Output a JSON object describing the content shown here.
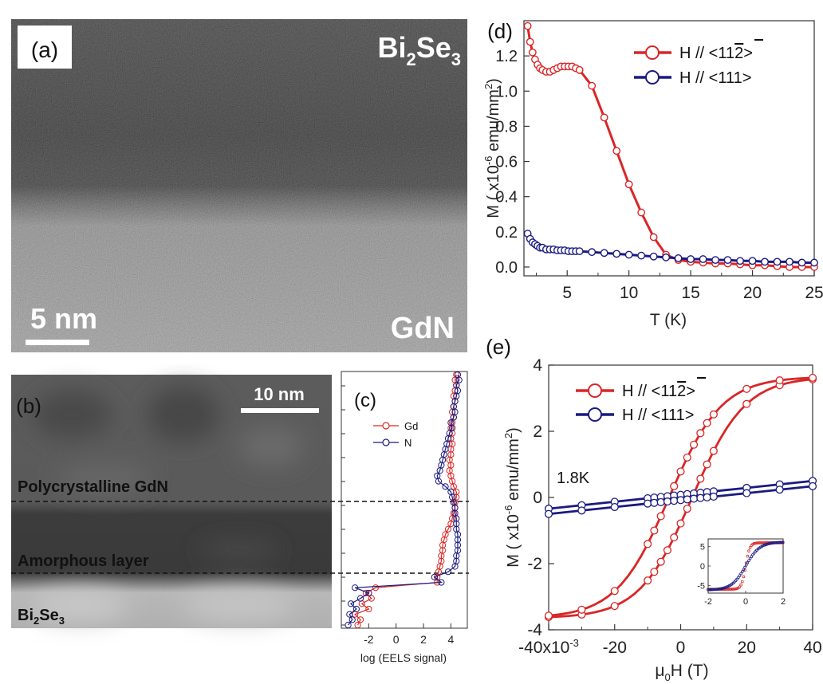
{
  "panels": {
    "a": {
      "label": "(a)",
      "material_top": "Bi",
      "material_top_sub1": "2",
      "material_top_mid": "Se",
      "material_top_sub2": "3",
      "material_bottom": "GdN",
      "scalebar": "5 nm"
    },
    "b": {
      "label": "(b)",
      "scalebar": "10 nm",
      "layers": [
        "Polycrystalline GdN",
        "Amorphous layer"
      ],
      "bottom_a": "Bi",
      "bottom_sub1": "2",
      "bottom_b": "Se",
      "bottom_sub2": "3"
    },
    "c": {
      "label": "(c)"
    },
    "d": {
      "label": "(d)"
    },
    "e": {
      "label": "(e)"
    }
  },
  "chart_data": [
    {
      "id": "c",
      "type": "line",
      "title": "",
      "xlabel": "log (EELS signal)",
      "ylabel": "",
      "xlim": [
        -4,
        5.2
      ],
      "xticks": [
        -2,
        0,
        2,
        4
      ],
      "xtick_labels": [
        "-2",
        "0",
        "2",
        "4"
      ],
      "legend": [
        "Gd",
        "N"
      ],
      "legend_position": "top-right",
      "colors": [
        "#d92626",
        "#1a1a80"
      ],
      "series": [
        {
          "name": "Gd",
          "depth": [
            0,
            1,
            2,
            3,
            4,
            5,
            6,
            7,
            8,
            9,
            10,
            11,
            12,
            13,
            14,
            15,
            16,
            17,
            18,
            19,
            20,
            21,
            22,
            23,
            24,
            25,
            26,
            27,
            28,
            29,
            30,
            31,
            32,
            33,
            34,
            35,
            36,
            37,
            38,
            39,
            40,
            41,
            42,
            43,
            44,
            45,
            46,
            47
          ],
          "values": [
            4.4,
            4.3,
            4.4,
            4.3,
            4.2,
            4.3,
            4.2,
            4.1,
            4.2,
            4.1,
            4.0,
            4.1,
            4.0,
            4.1,
            4.0,
            4.0,
            3.9,
            4.0,
            3.9,
            4.0,
            4.1,
            4.2,
            4.4,
            4.4,
            4.3,
            4.3,
            4.2,
            4.1,
            4.0,
            3.8,
            3.6,
            3.5,
            3.4,
            3.4,
            3.3,
            3.3,
            3.2,
            3.1,
            3.0,
            3.0,
            -1.5,
            -2.2,
            -1.8,
            -2.5,
            -2.0,
            -3.0,
            -2.6,
            -2.8
          ]
        },
        {
          "name": "N",
          "depth": [
            0,
            1,
            2,
            3,
            4,
            5,
            6,
            7,
            8,
            9,
            10,
            11,
            12,
            13,
            14,
            15,
            16,
            17,
            18,
            19,
            20,
            21,
            22,
            23,
            24,
            25,
            26,
            27,
            28,
            29,
            30,
            31,
            32,
            33,
            34,
            35,
            36,
            37,
            38,
            39,
            40,
            41,
            42,
            43,
            44,
            45,
            46,
            47
          ],
          "values": [
            4.5,
            4.6,
            4.4,
            4.5,
            4.4,
            4.3,
            4.2,
            4.3,
            4.2,
            4.0,
            4.1,
            3.9,
            3.8,
            3.7,
            3.6,
            3.5,
            3.4,
            3.3,
            3.2,
            3.0,
            3.1,
            3.6,
            4.0,
            4.1,
            4.2,
            4.3,
            4.3,
            4.4,
            4.4,
            4.4,
            4.5,
            4.5,
            4.5,
            4.5,
            4.4,
            4.4,
            4.3,
            3.8,
            2.8,
            3.3,
            -3.0,
            -2.0,
            -2.6,
            -3.3,
            -2.9,
            -3.4,
            -3.2,
            -3.5
          ]
        }
      ]
    },
    {
      "id": "d",
      "type": "line",
      "title": "",
      "xlabel": "T (K)",
      "ylabel_a": "M ( x10",
      "ylabel_b": "-6",
      "ylabel_c": " emu/mm",
      "ylabel_d": "2",
      "ylabel_e": ")",
      "xlim": [
        1.5,
        25
      ],
      "ylim": [
        -0.05,
        1.4
      ],
      "xticks": [
        5,
        10,
        15,
        20,
        25
      ],
      "xtick_labels": [
        "5",
        "10",
        "15",
        "20",
        "25"
      ],
      "yticks": [
        0,
        0.2,
        0.4,
        0.6,
        0.8,
        1.0,
        1.2
      ],
      "ytick_labels": [
        "0.0",
        "0.2",
        "0.4",
        "0.6",
        "0.8",
        "1.0",
        "1.2"
      ],
      "legend_position": "top-right",
      "legend_a": "H // <11",
      "legend_a_bar": "2",
      "legend_a_end": ">",
      "legend_b": "H // <111>",
      "colors": [
        "#d92626",
        "#1a1a80"
      ],
      "series": [
        {
          "name": "H // <112>",
          "x": [
            1.8,
            2.0,
            2.2,
            2.4,
            2.6,
            2.8,
            3.0,
            3.3,
            3.6,
            3.9,
            4.2,
            4.5,
            4.8,
            5.1,
            5.4,
            5.7,
            6,
            7,
            8,
            9,
            10,
            11,
            12,
            13,
            14,
            15,
            16,
            17,
            18,
            19,
            20,
            21,
            22,
            23,
            24,
            25
          ],
          "y": [
            1.37,
            1.28,
            1.22,
            1.18,
            1.15,
            1.13,
            1.12,
            1.11,
            1.11,
            1.12,
            1.13,
            1.14,
            1.14,
            1.14,
            1.14,
            1.13,
            1.12,
            1.03,
            0.85,
            0.66,
            0.47,
            0.31,
            0.17,
            0.07,
            0.04,
            0.03,
            0.025,
            0.02,
            0.02,
            0.015,
            0.01,
            0.01,
            0.005,
            0.0,
            0.0,
            0.0
          ]
        },
        {
          "name": "H // <111>",
          "x": [
            1.8,
            2.0,
            2.2,
            2.4,
            2.6,
            2.8,
            3.0,
            3.3,
            3.6,
            3.9,
            4.2,
            4.5,
            4.8,
            5.1,
            5.4,
            5.7,
            6,
            7,
            8,
            9,
            10,
            11,
            12,
            13,
            14,
            15,
            16,
            17,
            18,
            19,
            20,
            21,
            22,
            23,
            24,
            25
          ],
          "y": [
            0.19,
            0.16,
            0.14,
            0.13,
            0.12,
            0.11,
            0.11,
            0.1,
            0.1,
            0.1,
            0.095,
            0.095,
            0.095,
            0.09,
            0.09,
            0.09,
            0.09,
            0.085,
            0.08,
            0.075,
            0.07,
            0.065,
            0.06,
            0.055,
            0.05,
            0.045,
            0.045,
            0.04,
            0.04,
            0.035,
            0.035,
            0.03,
            0.03,
            0.03,
            0.025,
            0.025
          ]
        }
      ]
    },
    {
      "id": "e",
      "type": "line",
      "title": "",
      "xlabel_a": "μ",
      "xlabel_b": "0",
      "xlabel_c": "H (T)",
      "ylabel_a": "M ( x10",
      "ylabel_b": "-6",
      "ylabel_c": " emu/mm",
      "ylabel_d": "2",
      "ylabel_e": ")",
      "annotation": "1.8K",
      "xlim": [
        -0.04,
        0.04
      ],
      "ylim": [
        -4,
        4
      ],
      "xticks": [
        -0.04,
        -0.02,
        0,
        0.02,
        0.04
      ],
      "xtick_labels": [
        "-40x10",
        "-20",
        "0",
        "20",
        "40"
      ],
      "xtick_first_sup": "-3",
      "yticks": [
        -4,
        -2,
        0,
        2,
        4
      ],
      "ytick_labels": [
        "-4",
        "-2",
        "0",
        "2",
        "4"
      ],
      "legend_position": "top-left",
      "legend_a": "H // <11",
      "legend_a_bar": "2",
      "legend_a_end": ">",
      "legend_b": "H // <111>",
      "colors": [
        "#d92626",
        "#1a1a80"
      ],
      "inset": {
        "xlim": [
          -2,
          2
        ],
        "ylim": [
          -7,
          7
        ],
        "xticks": [
          -2,
          0,
          2
        ],
        "xtick_labels": [
          "-2",
          "0",
          "2"
        ],
        "yticks": [
          -5,
          0,
          5
        ],
        "ytick_labels": [
          "-5",
          "0",
          "5"
        ]
      }
    }
  ]
}
